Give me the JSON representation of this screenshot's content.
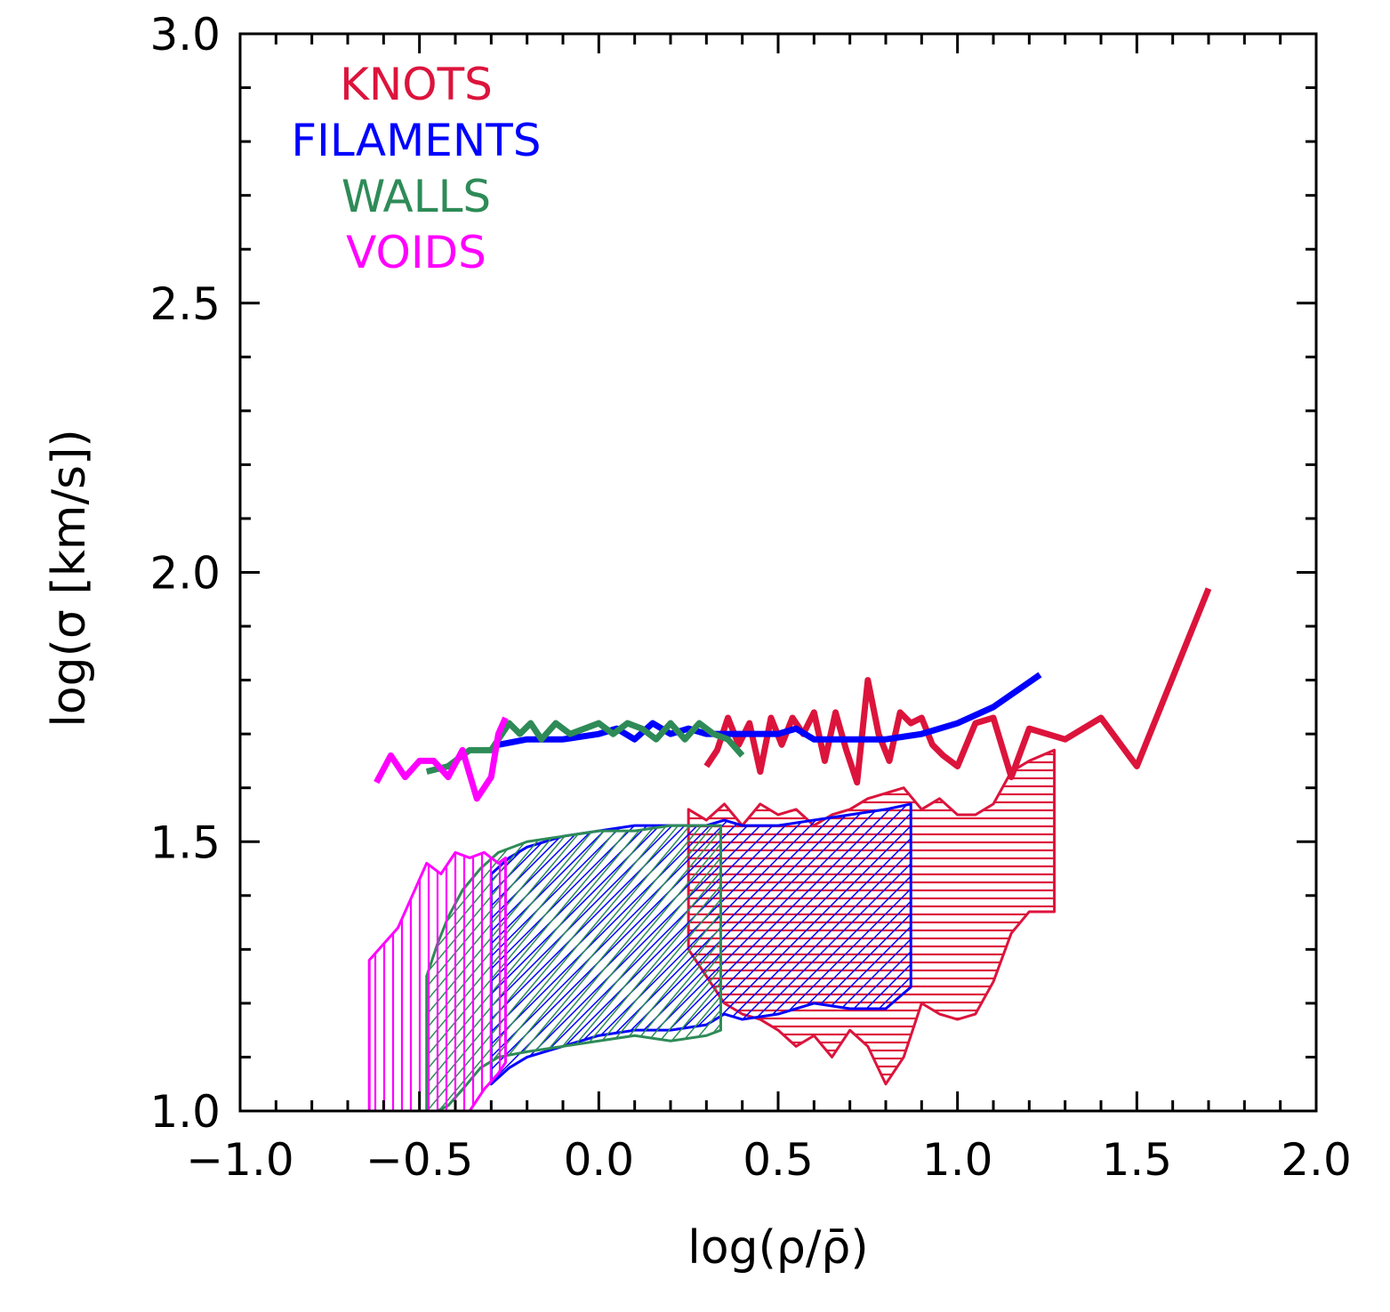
{
  "chart_data": {
    "type": "line",
    "title": "",
    "xlabel": "log(ρ/ρ̄)",
    "ylabel": "log(σ [km/s])",
    "xlim": [
      -1.0,
      2.0
    ],
    "ylim": [
      1.0,
      3.0
    ],
    "x_ticks": [
      "−1.0",
      "−0.5",
      "0.0",
      "0.5",
      "1.0",
      "1.5",
      "2.0"
    ],
    "x_tick_values": [
      -1.0,
      -0.5,
      0.0,
      0.5,
      1.0,
      1.5,
      2.0
    ],
    "y_ticks": [
      "1.0",
      "1.5",
      "2.0",
      "2.5",
      "3.0"
    ],
    "y_tick_values": [
      1.0,
      1.5,
      2.0,
      2.5,
      3.0
    ],
    "legend_position": "top-left",
    "series": [
      {
        "name": "KNOTS",
        "color": "#DC143C",
        "hatch": "horizontal",
        "x": [
          0.3,
          0.33,
          0.36,
          0.39,
          0.42,
          0.45,
          0.48,
          0.51,
          0.54,
          0.57,
          0.6,
          0.63,
          0.66,
          0.69,
          0.72,
          0.75,
          0.78,
          0.81,
          0.84,
          0.87,
          0.9,
          0.93,
          0.96,
          1.0,
          1.05,
          1.1,
          1.15,
          1.2,
          1.3,
          1.4,
          1.5,
          1.7
        ],
        "values": [
          1.64,
          1.67,
          1.73,
          1.68,
          1.72,
          1.63,
          1.73,
          1.68,
          1.73,
          1.7,
          1.74,
          1.65,
          1.74,
          1.67,
          1.61,
          1.8,
          1.7,
          1.65,
          1.74,
          1.72,
          1.73,
          1.68,
          1.66,
          1.64,
          1.72,
          1.73,
          1.62,
          1.71,
          1.69,
          1.73,
          1.64,
          1.97
        ],
        "band_x": [
          0.25,
          0.3,
          0.35,
          0.4,
          0.45,
          0.5,
          0.55,
          0.6,
          0.65,
          0.7,
          0.75,
          0.8,
          0.85,
          0.9,
          0.95,
          1.0,
          1.05,
          1.1,
          1.15,
          1.2,
          1.27
        ],
        "band_lower": [
          1.3,
          1.25,
          1.2,
          1.18,
          1.17,
          1.15,
          1.12,
          1.14,
          1.1,
          1.15,
          1.12,
          1.05,
          1.1,
          1.2,
          1.18,
          1.17,
          1.18,
          1.24,
          1.33,
          1.37,
          1.37
        ],
        "band_upper": [
          1.56,
          1.54,
          1.57,
          1.53,
          1.57,
          1.55,
          1.56,
          1.53,
          1.55,
          1.56,
          1.58,
          1.59,
          1.6,
          1.56,
          1.58,
          1.55,
          1.55,
          1.57,
          1.63,
          1.65,
          1.67
        ]
      },
      {
        "name": "FILAMENTS",
        "color": "#0000FF",
        "hatch": "diagonal-right",
        "x": [
          -0.28,
          -0.2,
          -0.1,
          0.0,
          0.05,
          0.1,
          0.15,
          0.2,
          0.25,
          0.3,
          0.35,
          0.4,
          0.45,
          0.5,
          0.55,
          0.6,
          0.7,
          0.8,
          0.9,
          1.0,
          1.1,
          1.23
        ],
        "values": [
          1.68,
          1.69,
          1.69,
          1.7,
          1.71,
          1.69,
          1.72,
          1.7,
          1.71,
          1.7,
          1.7,
          1.7,
          1.7,
          1.7,
          1.71,
          1.69,
          1.69,
          1.69,
          1.7,
          1.72,
          1.75,
          1.81
        ],
        "band_x": [
          -0.3,
          -0.25,
          -0.2,
          -0.1,
          0.0,
          0.1,
          0.2,
          0.3,
          0.35,
          0.4,
          0.5,
          0.6,
          0.7,
          0.8,
          0.87
        ],
        "band_lower": [
          1.05,
          1.08,
          1.1,
          1.12,
          1.14,
          1.15,
          1.15,
          1.16,
          1.18,
          1.17,
          1.18,
          1.2,
          1.19,
          1.19,
          1.23
        ],
        "band_upper": [
          1.44,
          1.47,
          1.49,
          1.51,
          1.52,
          1.53,
          1.53,
          1.53,
          1.54,
          1.53,
          1.53,
          1.54,
          1.55,
          1.56,
          1.57
        ]
      },
      {
        "name": "WALLS",
        "color": "#2E8B57",
        "hatch": "diagonal-right",
        "x": [
          -0.48,
          -0.42,
          -0.36,
          -0.3,
          -0.25,
          -0.22,
          -0.19,
          -0.16,
          -0.12,
          -0.08,
          -0.04,
          0.0,
          0.04,
          0.08,
          0.12,
          0.16,
          0.2,
          0.24,
          0.28,
          0.32,
          0.36,
          0.4
        ],
        "values": [
          1.63,
          1.64,
          1.67,
          1.67,
          1.72,
          1.7,
          1.72,
          1.69,
          1.72,
          1.7,
          1.71,
          1.72,
          1.7,
          1.72,
          1.71,
          1.69,
          1.72,
          1.69,
          1.72,
          1.7,
          1.69,
          1.66
        ],
        "band_x": [
          -0.48,
          -0.45,
          -0.42,
          -0.38,
          -0.33,
          -0.28,
          -0.2,
          -0.1,
          0.0,
          0.1,
          0.2,
          0.3,
          0.34
        ],
        "band_lower": [
          1.0,
          1.0,
          1.01,
          1.04,
          1.08,
          1.1,
          1.11,
          1.12,
          1.13,
          1.14,
          1.13,
          1.14,
          1.15
        ],
        "band_upper": [
          1.25,
          1.31,
          1.36,
          1.41,
          1.45,
          1.48,
          1.5,
          1.51,
          1.52,
          1.52,
          1.53,
          1.53,
          1.53
        ]
      },
      {
        "name": "VOIDS",
        "color": "#FF00FF",
        "x": [
          -0.62,
          -0.58,
          -0.54,
          -0.5,
          -0.46,
          -0.42,
          -0.38,
          -0.34,
          -0.3,
          -0.28,
          -0.26
        ],
        "values": [
          1.61,
          1.66,
          1.62,
          1.65,
          1.65,
          1.62,
          1.67,
          1.58,
          1.62,
          1.7,
          1.73
        ],
        "band_x": [
          -0.64,
          -0.6,
          -0.56,
          -0.52,
          -0.48,
          -0.44,
          -0.4,
          -0.36,
          -0.32,
          -0.28,
          -0.26
        ],
        "band_lower": [
          1.0,
          1.0,
          1.0,
          1.0,
          1.0,
          1.0,
          1.0,
          1.0,
          1.04,
          1.07,
          1.09
        ],
        "band_upper": [
          1.28,
          1.31,
          1.34,
          1.4,
          1.46,
          1.44,
          1.48,
          1.47,
          1.48,
          1.46,
          1.47
        ]
      }
    ]
  }
}
